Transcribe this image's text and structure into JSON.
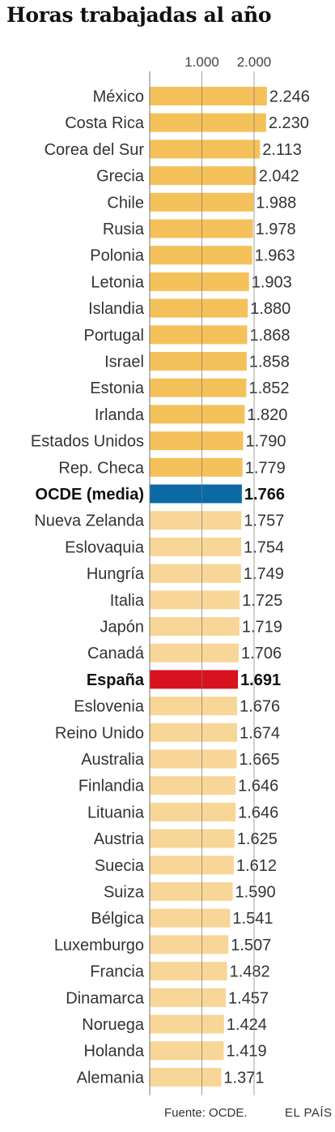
{
  "title": "Horas trabajadas al año",
  "source": "Fuente: OCDE.",
  "brand": "EL PAÍS",
  "colors": {
    "top": "#f5c15a",
    "bottom": "#f8d697",
    "ocde": "#0b6aa5",
    "spain": "#d9121f",
    "axis": "#888888",
    "text": "#333333",
    "highlight_text": "#111111"
  },
  "chart_data": {
    "type": "bar",
    "orientation": "horizontal",
    "title": "Horas trabajadas al año",
    "xlabel": "",
    "ylabel": "",
    "x_ticks": [
      "1.000",
      "2.000"
    ],
    "xlim": [
      0,
      2300
    ],
    "grid": "vertical lines at 1.000 and 2.000",
    "bars": [
      {
        "label": "México",
        "value": 2246,
        "value_label": "2.246",
        "style": "top"
      },
      {
        "label": "Costa Rica",
        "value": 2230,
        "value_label": "2.230",
        "style": "top"
      },
      {
        "label": "Corea del Sur",
        "value": 2113,
        "value_label": "2.113",
        "style": "top"
      },
      {
        "label": "Grecia",
        "value": 2042,
        "value_label": "2.042",
        "style": "top"
      },
      {
        "label": "Chile",
        "value": 1988,
        "value_label": "1.988",
        "style": "top"
      },
      {
        "label": "Rusia",
        "value": 1978,
        "value_label": "1.978",
        "style": "top"
      },
      {
        "label": "Polonia",
        "value": 1963,
        "value_label": "1.963",
        "style": "top"
      },
      {
        "label": "Letonia",
        "value": 1903,
        "value_label": "1.903",
        "style": "top"
      },
      {
        "label": "Islandia",
        "value": 1880,
        "value_label": "1.880",
        "style": "top"
      },
      {
        "label": "Portugal",
        "value": 1868,
        "value_label": "1.868",
        "style": "top"
      },
      {
        "label": "Israel",
        "value": 1858,
        "value_label": "1.858",
        "style": "top"
      },
      {
        "label": "Estonia",
        "value": 1852,
        "value_label": "1.852",
        "style": "top"
      },
      {
        "label": "Irlanda",
        "value": 1820,
        "value_label": "1.820",
        "style": "top"
      },
      {
        "label": "Estados Unidos",
        "value": 1790,
        "value_label": "1.790",
        "style": "top"
      },
      {
        "label": "Rep. Checa",
        "value": 1779,
        "value_label": "1.779",
        "style": "top"
      },
      {
        "label": "OCDE (media)",
        "value": 1766,
        "value_label": "1.766",
        "style": "ocde"
      },
      {
        "label": "Nueva Zelanda",
        "value": 1757,
        "value_label": "1.757",
        "style": "bottom"
      },
      {
        "label": "Eslovaquia",
        "value": 1754,
        "value_label": "1.754",
        "style": "bottom"
      },
      {
        "label": "Hungría",
        "value": 1749,
        "value_label": "1.749",
        "style": "bottom"
      },
      {
        "label": "Italia",
        "value": 1725,
        "value_label": "1.725",
        "style": "bottom"
      },
      {
        "label": "Japón",
        "value": 1719,
        "value_label": "1.719",
        "style": "bottom"
      },
      {
        "label": "Canadá",
        "value": 1706,
        "value_label": "1.706",
        "style": "bottom"
      },
      {
        "label": "España",
        "value": 1691,
        "value_label": "1.691",
        "style": "spain"
      },
      {
        "label": "Eslovenia",
        "value": 1676,
        "value_label": "1.676",
        "style": "bottom"
      },
      {
        "label": "Reino Unido",
        "value": 1674,
        "value_label": "1.674",
        "style": "bottom"
      },
      {
        "label": "Australia",
        "value": 1665,
        "value_label": "1.665",
        "style": "bottom"
      },
      {
        "label": "Finlandia",
        "value": 1646,
        "value_label": "1.646",
        "style": "bottom"
      },
      {
        "label": "Lituania",
        "value": 1646,
        "value_label": "1.646",
        "style": "bottom"
      },
      {
        "label": "Austria",
        "value": 1625,
        "value_label": "1.625",
        "style": "bottom"
      },
      {
        "label": "Suecia",
        "value": 1612,
        "value_label": "1.612",
        "style": "bottom"
      },
      {
        "label": "Suiza",
        "value": 1590,
        "value_label": "1.590",
        "style": "bottom"
      },
      {
        "label": "Bélgica",
        "value": 1541,
        "value_label": "1.541",
        "style": "bottom"
      },
      {
        "label": "Luxemburgo",
        "value": 1507,
        "value_label": "1.507",
        "style": "bottom"
      },
      {
        "label": "Francia",
        "value": 1482,
        "value_label": "1.482",
        "style": "bottom"
      },
      {
        "label": "Dinamarca",
        "value": 1457,
        "value_label": "1.457",
        "style": "bottom"
      },
      {
        "label": "Noruega",
        "value": 1424,
        "value_label": "1.424",
        "style": "bottom"
      },
      {
        "label": "Holanda",
        "value": 1419,
        "value_label": "1.419",
        "style": "bottom"
      },
      {
        "label": "Alemania",
        "value": 1371,
        "value_label": "1.371",
        "style": "bottom"
      }
    ]
  }
}
